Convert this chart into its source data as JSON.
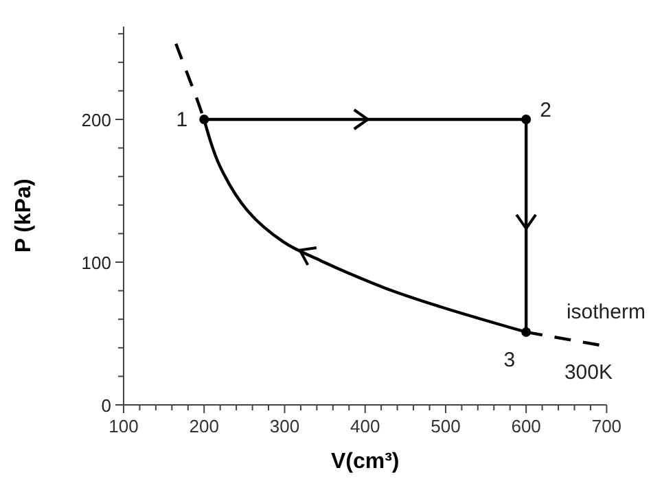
{
  "chart_data": {
    "type": "line",
    "xlabel": "V(cm³)",
    "ylabel": "P (kPa)",
    "xlim": [
      100,
      700
    ],
    "ylim": [
      0,
      265
    ],
    "xticks": [
      100,
      {
        "value": 120,
        "label": null
      },
      {
        "value": 140,
        "label": null
      },
      {
        "value": 160,
        "label": null
      },
      {
        "value": 180,
        "label": null
      },
      200,
      {
        "value": 220,
        "label": null
      },
      {
        "value": 240,
        "label": null
      },
      {
        "value": 260,
        "label": null
      },
      {
        "value": 280,
        "label": null
      },
      300,
      {
        "value": 320,
        "label": null
      },
      {
        "value": 340,
        "label": null
      },
      {
        "value": 360,
        "label": null
      },
      {
        "value": 380,
        "label": null
      },
      400,
      {
        "value": 420,
        "label": null
      },
      {
        "value": 440,
        "label": null
      },
      {
        "value": 460,
        "label": null
      },
      {
        "value": 480,
        "label": null
      },
      500,
      {
        "value": 520,
        "label": null
      },
      {
        "value": 540,
        "label": null
      },
      {
        "value": 560,
        "label": null
      },
      {
        "value": 580,
        "label": null
      },
      600,
      {
        "value": 620,
        "label": null
      },
      {
        "value": 640,
        "label": null
      },
      {
        "value": 660,
        "label": null
      },
      {
        "value": 680,
        "label": null
      },
      700
    ],
    "yticks": [
      0,
      {
        "value": 20,
        "label": null
      },
      {
        "value": 40,
        "label": null
      },
      {
        "value": 60,
        "label": null
      },
      {
        "value": 80,
        "label": null
      },
      100,
      {
        "value": 120,
        "label": null
      },
      {
        "value": 140,
        "label": null
      },
      {
        "value": 160,
        "label": null
      },
      {
        "value": 180,
        "label": null
      },
      200,
      {
        "value": 220,
        "label": null
      },
      {
        "value": 240,
        "label": null
      },
      {
        "value": 260,
        "label": null
      }
    ],
    "grid": false,
    "series": [
      {
        "color": "#000000",
        "x": [
          200,
          600,
          600
        ],
        "values": [
          200,
          200,
          51
        ],
        "line_style": "solid"
      },
      {
        "color": "#000000",
        "x": [
          600,
          492,
          424,
          345,
          299,
          254,
          219,
          200
        ],
        "values": [
          51,
          69,
          82,
          101,
          114,
          136,
          168,
          200
        ],
        "line_style": "solid"
      },
      {
        "color": "#000000",
        "x": [
          165,
          190,
          200
        ],
        "values": [
          253,
          216,
          200
        ],
        "line_style": "dashed"
      },
      {
        "color": "#000000",
        "x": [
          600,
          700
        ],
        "values": [
          51,
          41
        ],
        "line_style": "dashed"
      },
      {
        "type": "scatter",
        "color": "#000000",
        "x": [
          200,
          600,
          600
        ],
        "values": [
          200,
          200,
          51
        ],
        "marker": "circle"
      }
    ],
    "annotations": [
      "1",
      "2",
      "3",
      "isotherm",
      "300K"
    ]
  }
}
